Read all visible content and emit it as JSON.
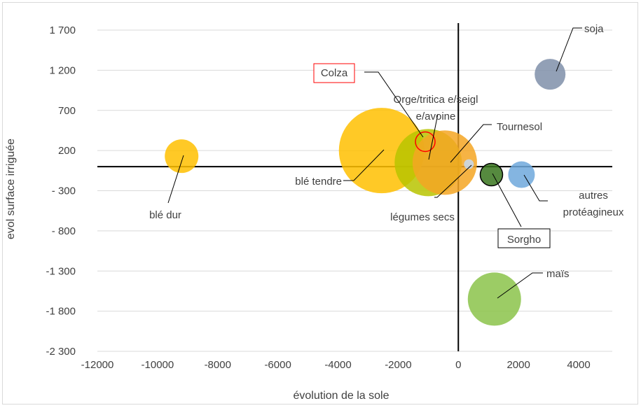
{
  "chart_data": {
    "type": "bubble",
    "xlabel": "évolution de la sole",
    "ylabel": "evol surface irriguée",
    "xlim": [
      -12000,
      5000
    ],
    "ylim": [
      -2300,
      2000
    ],
    "x_ticks": [
      -12000,
      -10000,
      -8000,
      -6000,
      -4000,
      -2000,
      0,
      2000,
      4000
    ],
    "y_ticks": [
      1700,
      1200,
      700,
      200,
      -300,
      -800,
      -1300,
      -1800,
      -2300
    ],
    "x_tick_labels": [
      "-12000",
      "-10000",
      "-8000",
      "-6000",
      "-4000",
      "-2000",
      "0",
      "2000",
      "4000"
    ],
    "y_tick_labels": [
      "1 700",
      "1 200",
      "700",
      "200",
      "- 300",
      "- 800",
      "-1 300",
      "-1 800",
      "-2 300"
    ],
    "grid": "horizontal",
    "points": [
      {
        "label": "soja",
        "x": 3050,
        "y": 1150,
        "size": 22,
        "color": "#7f8fa9",
        "border": "none",
        "label_lines": [
          "soja"
        ]
      },
      {
        "label": "blé dur",
        "x": -9200,
        "y": 130,
        "size": 24,
        "color": "#ffc000",
        "border": "none",
        "label_lines": [
          "blé dur"
        ]
      },
      {
        "label": "blé tendre",
        "x": -2550,
        "y": 200,
        "size": 61,
        "color": "#ffc000",
        "border": "none",
        "label_lines": [
          "blé tendre"
        ]
      },
      {
        "label": "Orge/triticale/seigle/avoine",
        "x": -1000,
        "y": 50,
        "size": 48,
        "color": "#b8c400",
        "border": "none",
        "label_lines": [
          "Orge/tritica e/seigl",
          "e/avoine"
        ]
      },
      {
        "label": "Tournesol",
        "x": -450,
        "y": 50,
        "size": 46,
        "color": "#f5a623",
        "border": "none",
        "label_lines": [
          "Tournesol"
        ]
      },
      {
        "label": "Colza",
        "x": -1100,
        "y": 310,
        "size": 14,
        "color": "none",
        "border": "#ff0000",
        "label_lines": [
          "Colza"
        ]
      },
      {
        "label": "légumes secs",
        "x": 350,
        "y": 30,
        "size": 7,
        "color": "#c5d9f1",
        "border": "none",
        "label_lines": [
          "légumes secs"
        ]
      },
      {
        "label": "Sorgho",
        "x": 1100,
        "y": -100,
        "size": 16,
        "color": "#38761d",
        "border": "#000000",
        "label_lines": [
          "Sorgho"
        ]
      },
      {
        "label": "autres protéagineux",
        "x": 2100,
        "y": -100,
        "size": 19,
        "color": "#6fa8dc",
        "border": "none",
        "label_lines": [
          "autres",
          "protéagineux"
        ]
      },
      {
        "label": "maïs",
        "x": 1200,
        "y": -1650,
        "size": 38,
        "color": "#8bc34a",
        "border": "none",
        "label_lines": [
          "maïs"
        ]
      }
    ]
  }
}
